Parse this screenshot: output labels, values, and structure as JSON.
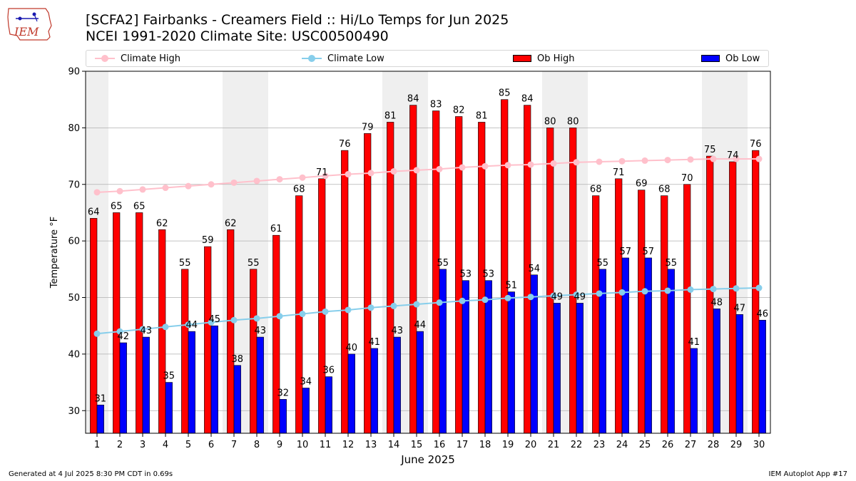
{
  "header": {
    "title_line1": "[SCFA2] Fairbanks - Creamers Field :: Hi/Lo Temps for Jun 2025",
    "title_line2": "NCEI 1991-2020 Climate Site: USC00500490",
    "logo_text": "IEM"
  },
  "footer": {
    "generated": "Generated at 4 Jul 2025 8:30 PM CDT in 0.69s",
    "app": "IEM Autoplot App #17"
  },
  "colors": {
    "ob_high": "#ff0000",
    "ob_low": "#0000ff",
    "climate_high": "#ffc0cb",
    "climate_low": "#87ceeb",
    "weekend_band": "#efefef",
    "grid": "#b0b0b0"
  },
  "chart_data": {
    "type": "bar",
    "xlabel": "June 2025",
    "ylabel": "Temperature °F",
    "ylim": [
      26,
      90
    ],
    "yticks": [
      30,
      40,
      50,
      60,
      70,
      80,
      90
    ],
    "grid": "horizontal",
    "legend_placement": "top",
    "weekend_days": [
      1,
      7,
      8,
      14,
      15,
      21,
      22,
      28,
      29
    ],
    "categories": [
      1,
      2,
      3,
      4,
      5,
      6,
      7,
      8,
      9,
      10,
      11,
      12,
      13,
      14,
      15,
      16,
      17,
      18,
      19,
      20,
      21,
      22,
      23,
      24,
      25,
      26,
      27,
      28,
      29,
      30
    ],
    "series": [
      {
        "name": "Climate High",
        "kind": "line",
        "values": [
          68.6,
          68.8,
          69.1,
          69.4,
          69.7,
          70.0,
          70.3,
          70.6,
          70.9,
          71.2,
          71.5,
          71.8,
          72.0,
          72.3,
          72.5,
          72.7,
          73.0,
          73.2,
          73.4,
          73.5,
          73.7,
          73.9,
          74.0,
          74.1,
          74.2,
          74.3,
          74.4,
          74.5,
          74.5,
          74.5
        ]
      },
      {
        "name": "Climate Low",
        "kind": "line",
        "values": [
          43.6,
          44.0,
          44.4,
          44.8,
          45.2,
          45.6,
          46.0,
          46.3,
          46.7,
          47.1,
          47.5,
          47.8,
          48.2,
          48.5,
          48.8,
          49.1,
          49.4,
          49.6,
          49.9,
          50.1,
          50.3,
          50.5,
          50.7,
          50.9,
          51.1,
          51.2,
          51.4,
          51.5,
          51.6,
          51.7
        ]
      },
      {
        "name": "Ob High",
        "kind": "bar",
        "values": [
          64,
          65,
          65,
          62,
          55,
          59,
          62,
          55,
          61,
          68,
          71,
          76,
          79,
          81,
          84,
          83,
          82,
          81,
          85,
          84,
          80,
          80,
          68,
          71,
          69,
          68,
          70,
          75,
          74,
          76
        ]
      },
      {
        "name": "Ob Low",
        "kind": "bar",
        "values": [
          31,
          42,
          43,
          35,
          44,
          45,
          38,
          43,
          32,
          34,
          36,
          40,
          41,
          43,
          44,
          55,
          53,
          53,
          51,
          54,
          49,
          49,
          55,
          57,
          57,
          55,
          41,
          48,
          47,
          46
        ]
      }
    ]
  }
}
